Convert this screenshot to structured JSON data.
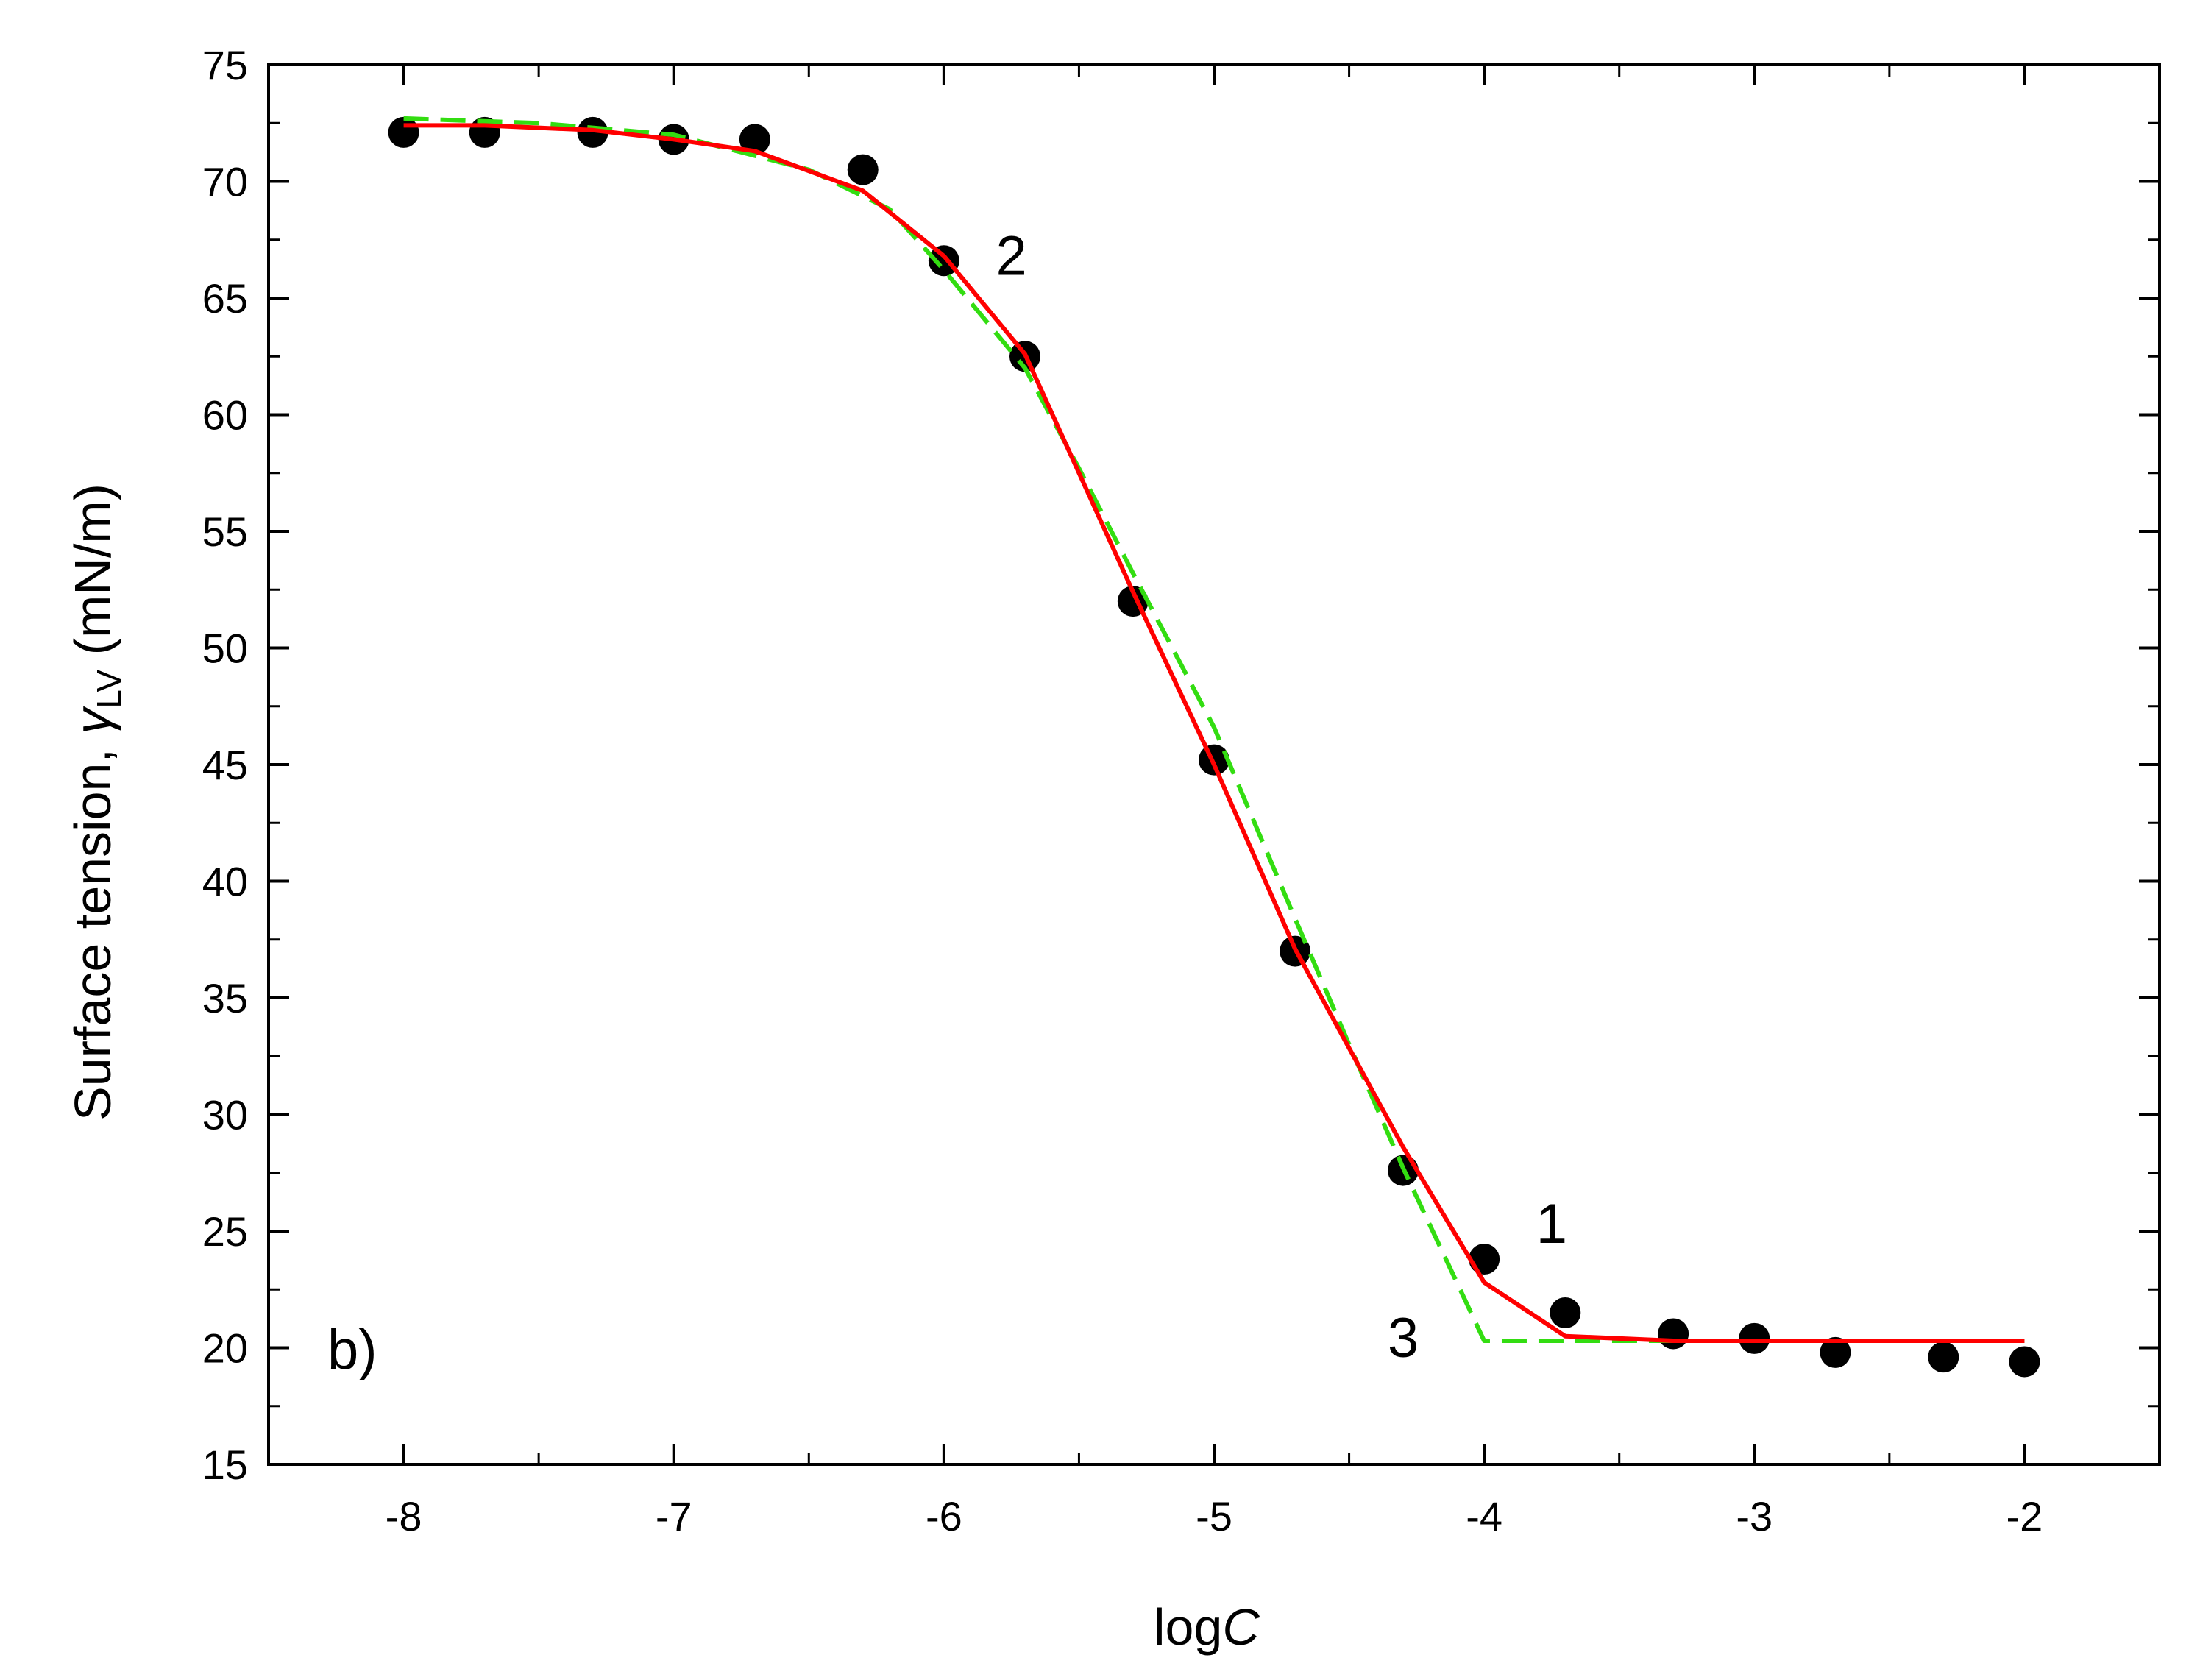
{
  "chart_data": {
    "type": "scatter",
    "panel_label": "b)",
    "xlabel": {
      "prefix": "log",
      "italic": "C"
    },
    "ylabel": {
      "text": "Surface tension, ",
      "symbol": "γ",
      "subscript": "LV",
      "unit": " (mN/m)"
    },
    "xlim": [
      -8.5,
      -1.5
    ],
    "ylim": [
      15,
      75
    ],
    "x_ticks": [
      -8,
      -7,
      -6,
      -5,
      -4,
      -3,
      -2
    ],
    "y_ticks": [
      15,
      20,
      25,
      30,
      35,
      40,
      45,
      50,
      55,
      60,
      65,
      70,
      75
    ],
    "grid": false,
    "series": [
      {
        "name": "1",
        "kind": "points",
        "color": "#000000",
        "x": [
          -8,
          -7.7,
          -7.3,
          -7,
          -6.7,
          -6.3,
          -6,
          -5.7,
          -5.3,
          -5,
          -4.7,
          -4.3,
          -4,
          -3.7,
          -3.3,
          -3,
          -2.7,
          -2.3,
          -2
        ],
        "y": [
          72.1,
          72.1,
          72.1,
          71.8,
          71.8,
          70.5,
          66.6,
          62.5,
          52.0,
          45.2,
          37.0,
          27.6,
          23.8,
          21.5,
          20.6,
          20.4,
          19.8,
          19.6,
          19.4
        ]
      },
      {
        "name": "2",
        "kind": "line",
        "color": "#ff0000",
        "x": [
          -8,
          -7.7,
          -7.3,
          -7,
          -6.7,
          -6.3,
          -6,
          -5.7,
          -5.3,
          -5,
          -4.7,
          -4.3,
          -4,
          -3.7,
          -3.3,
          -3,
          -2.7,
          -2.3,
          -2
        ],
        "y": [
          72.4,
          72.4,
          72.2,
          71.8,
          71.3,
          69.6,
          66.8,
          62.6,
          52.4,
          45.0,
          37.1,
          28.6,
          22.8,
          20.5,
          20.3,
          20.3,
          20.3,
          20.3,
          20.3
        ]
      },
      {
        "name": "3",
        "kind": "dashed-line",
        "color": "#33dd11",
        "x": [
          -8,
          -7.5,
          -7,
          -6.5,
          -6.2,
          -6,
          -5.7,
          -5.5,
          -5.3,
          -5,
          -4.7,
          -4.5,
          -4.3,
          -4.15,
          -4,
          -3.5,
          -3,
          -2
        ],
        "y": [
          72.7,
          72.5,
          72.0,
          70.5,
          68.8,
          66.2,
          62.0,
          57.7,
          53.2,
          46.6,
          38.4,
          33.0,
          27.7,
          24.0,
          20.3,
          20.3,
          20.3,
          20.3
        ]
      }
    ],
    "annotations": [
      {
        "text": "2",
        "x": -5.75,
        "y": 66.0
      },
      {
        "text": "1",
        "x": -3.75,
        "y": 24.5
      },
      {
        "text": "3",
        "x": -4.3,
        "y": 19.6
      }
    ]
  }
}
